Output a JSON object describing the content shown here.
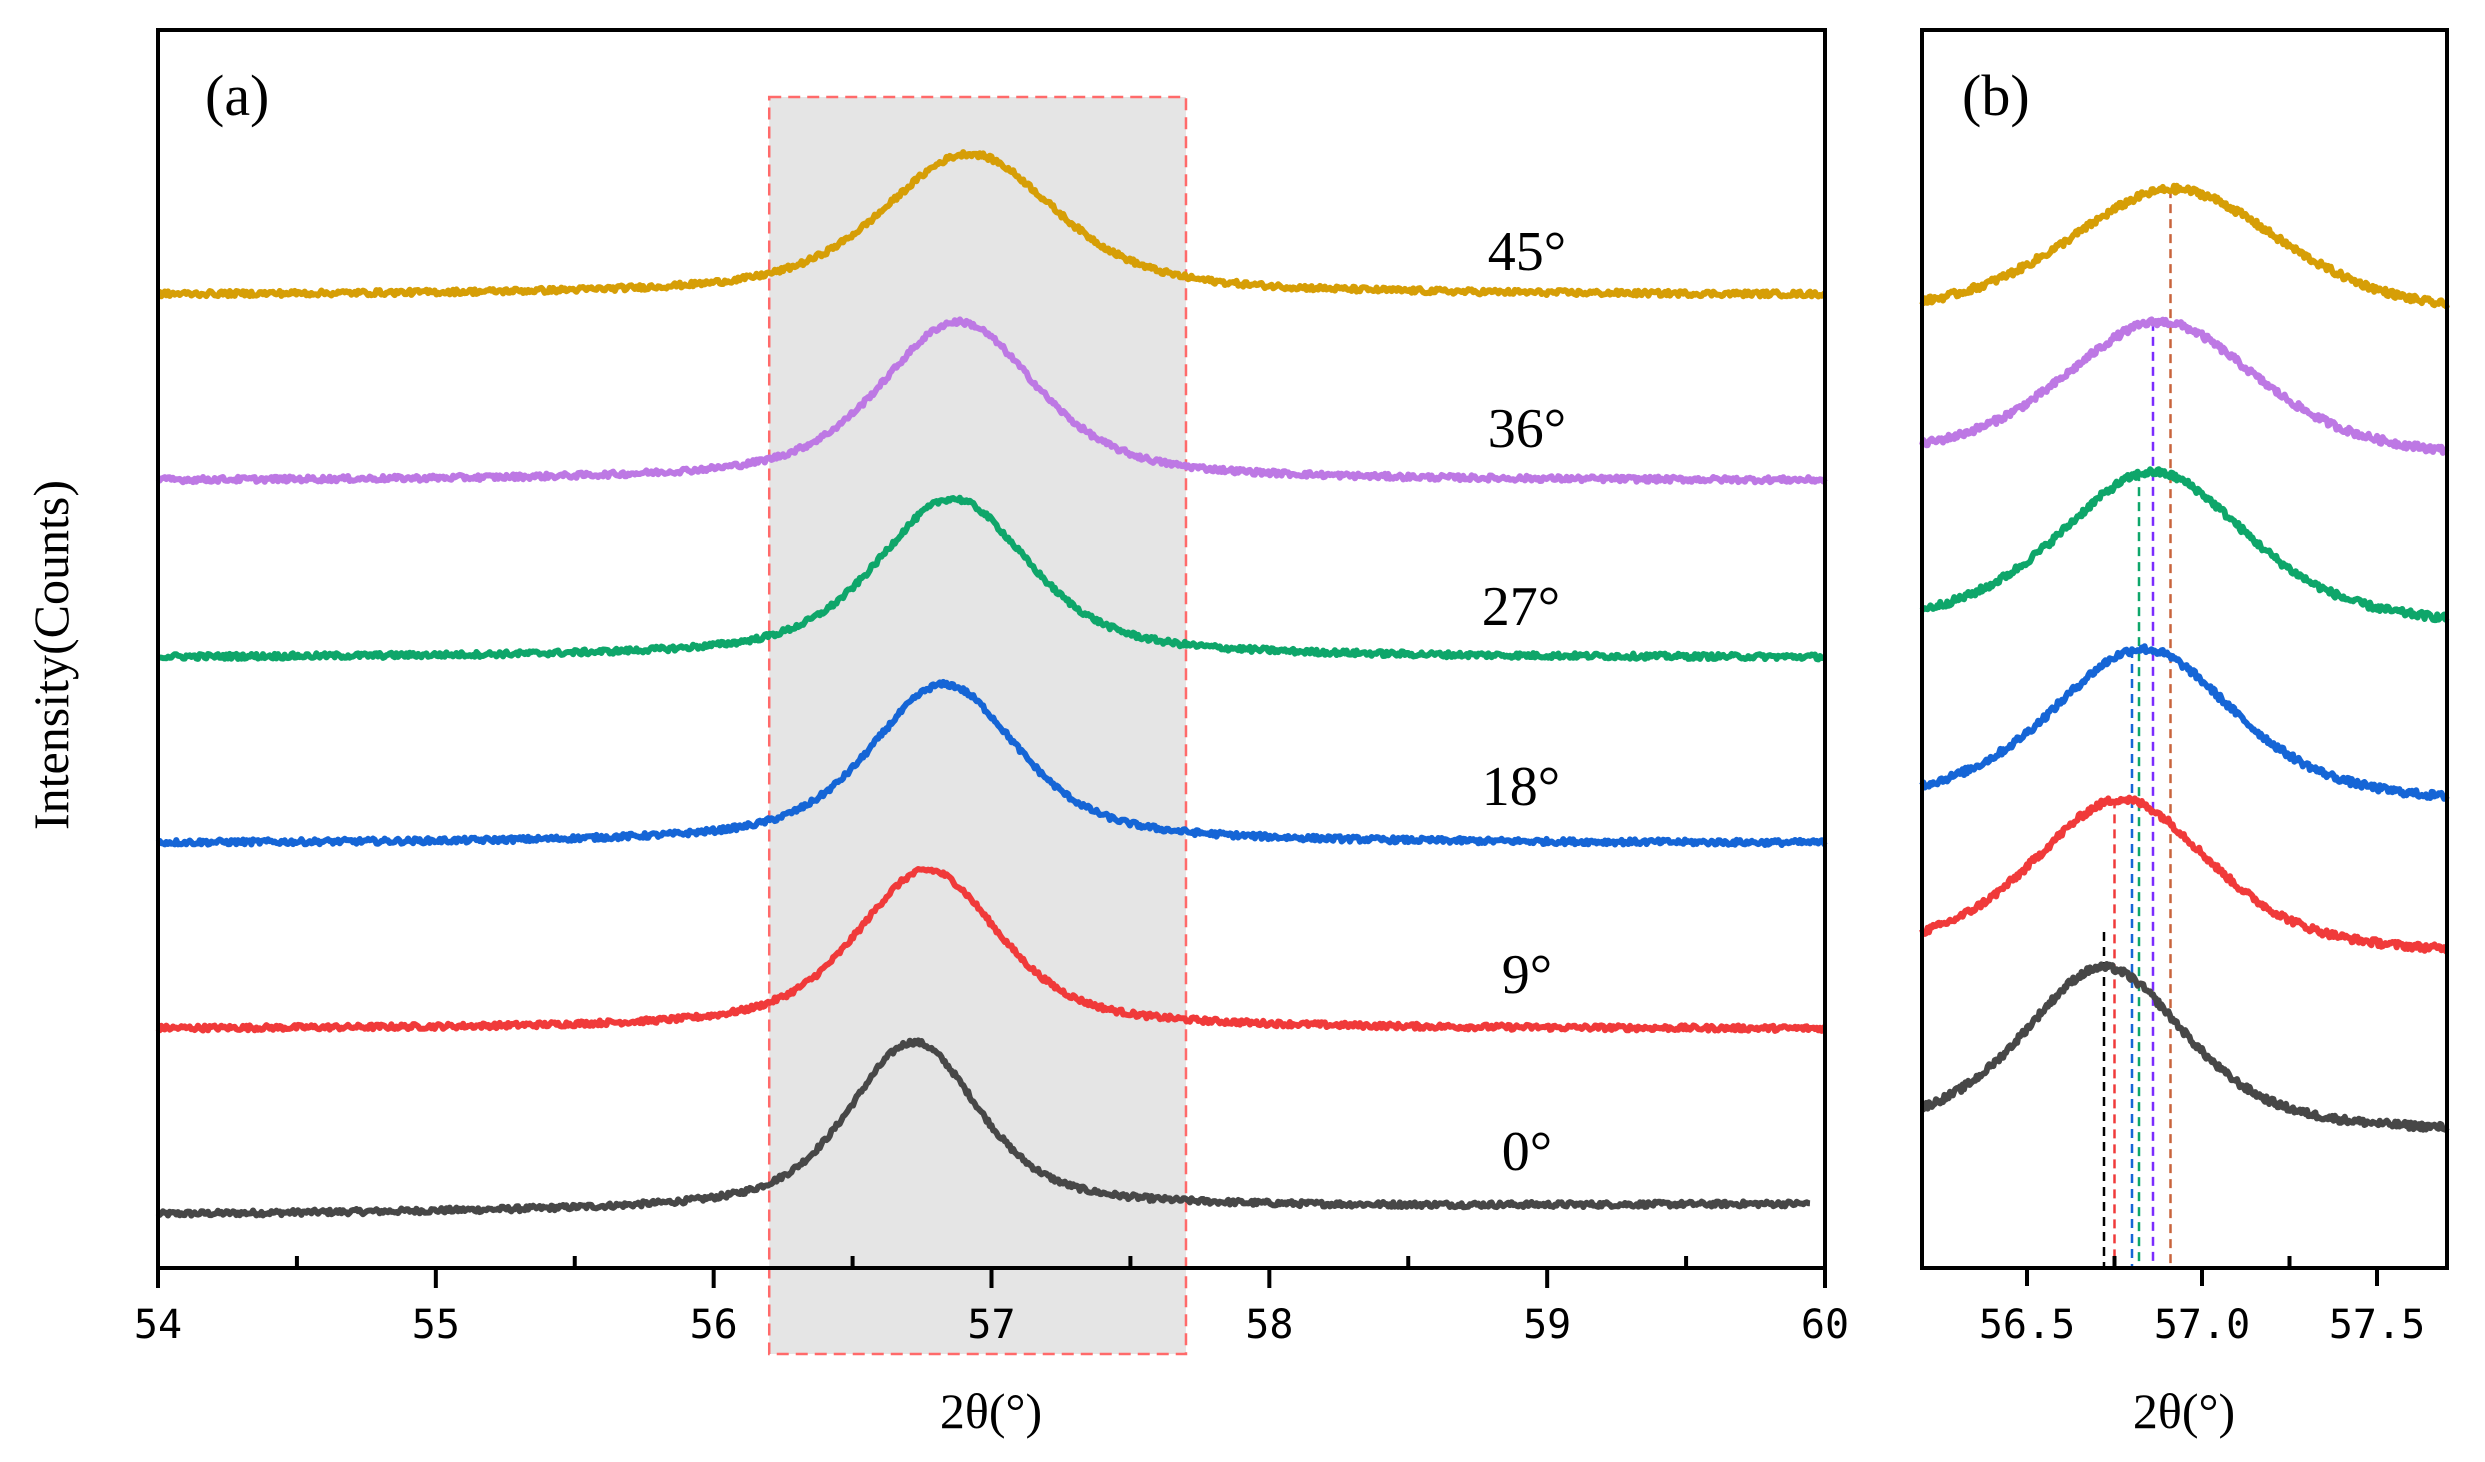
{
  "figure": {
    "ylabel": "Intensity(Counts)"
  },
  "chart_data": [
    {
      "type": "line",
      "panel": "(a)",
      "xlabel": "2θ(°)",
      "ylabel": "Intensity(Counts)",
      "xlim": [
        54,
        60
      ],
      "ylim": [
        0,
        7
      ],
      "xticks": [
        "54",
        "55",
        "56",
        "57",
        "58",
        "59",
        "60"
      ],
      "highlight_region": {
        "x_from": 56.2,
        "x_to": 57.7,
        "color": "#dcdcdc",
        "border": "#ff6a6a"
      },
      "series": [
        {
          "name": "0°",
          "label": "0°",
          "color": "#474747",
          "offset": 0.3,
          "peak_x": 56.72,
          "peak_height": 0.95,
          "width": 0.3,
          "baseline_slope": 0.01,
          "tail_x": 59.95
        },
        {
          "name": "9°",
          "label": "9°",
          "color": "#f03a3a",
          "offset": 1.35,
          "peak_x": 56.77,
          "peak_height": 0.9,
          "width": 0.33,
          "baseline_slope": 0.0,
          "tail_x": 60.0
        },
        {
          "name": "18°",
          "label": "18°",
          "color": "#1565d6",
          "offset": 2.4,
          "peak_x": 56.83,
          "peak_height": 0.9,
          "width": 0.34,
          "baseline_slope": 0.0,
          "tail_x": 60.0
        },
        {
          "name": "27°",
          "label": "27°",
          "color": "#0ea66a",
          "offset": 3.45,
          "peak_x": 56.86,
          "peak_height": 0.9,
          "width": 0.35,
          "baseline_slope": 0.0,
          "tail_x": 60.0
        },
        {
          "name": "36°",
          "label": "36°",
          "color": "#bd78e4",
          "offset": 4.45,
          "peak_x": 56.88,
          "peak_height": 0.9,
          "width": 0.36,
          "baseline_slope": 0.0,
          "tail_x": 60.0
        },
        {
          "name": "45°",
          "label": "45°",
          "color": "#d69e06",
          "offset": 5.5,
          "peak_x": 56.92,
          "peak_height": 0.8,
          "width": 0.4,
          "baseline_slope": 0.0,
          "tail_x": 60.0
        }
      ],
      "annotations": [
        "0°",
        "9°",
        "18°",
        "27°",
        "36°",
        "45°"
      ]
    },
    {
      "type": "line",
      "panel": "(b)",
      "xlabel": "2θ(°)",
      "xlim": [
        56.2,
        57.7
      ],
      "ylim": [
        0,
        7
      ],
      "xticks": [
        "56.5",
        "57.0",
        "57.5"
      ],
      "xtick_values": [
        56.5,
        57.0,
        57.5
      ],
      "series": [
        {
          "name": "0°",
          "color": "#474747",
          "offset": 0.75,
          "peak_x": 56.72,
          "peak_height": 0.95,
          "width": 0.3
        },
        {
          "name": "9°",
          "color": "#f03a3a",
          "offset": 1.75,
          "peak_x": 56.77,
          "peak_height": 0.9,
          "width": 0.33
        },
        {
          "name": "18°",
          "color": "#1565d6",
          "offset": 2.6,
          "peak_x": 56.83,
          "peak_height": 0.9,
          "width": 0.34
        },
        {
          "name": "27°",
          "color": "#0ea66a",
          "offset": 3.6,
          "peak_x": 56.86,
          "peak_height": 0.9,
          "width": 0.35
        },
        {
          "name": "36°",
          "color": "#bd78e4",
          "offset": 4.55,
          "peak_x": 56.88,
          "peak_height": 0.8,
          "width": 0.36
        },
        {
          "name": "45°",
          "color": "#d69e06",
          "offset": 5.35,
          "peak_x": 56.92,
          "peak_height": 0.75,
          "width": 0.4
        }
      ],
      "peak_markers": [
        {
          "x": 56.72,
          "color": "#000000"
        },
        {
          "x": 56.75,
          "color": "#f03a3a"
        },
        {
          "x": 56.8,
          "color": "#1565d6"
        },
        {
          "x": 56.82,
          "color": "#0ea66a"
        },
        {
          "x": 56.86,
          "color": "#7b2cff"
        },
        {
          "x": 56.91,
          "color": "#c8643c"
        }
      ]
    }
  ]
}
